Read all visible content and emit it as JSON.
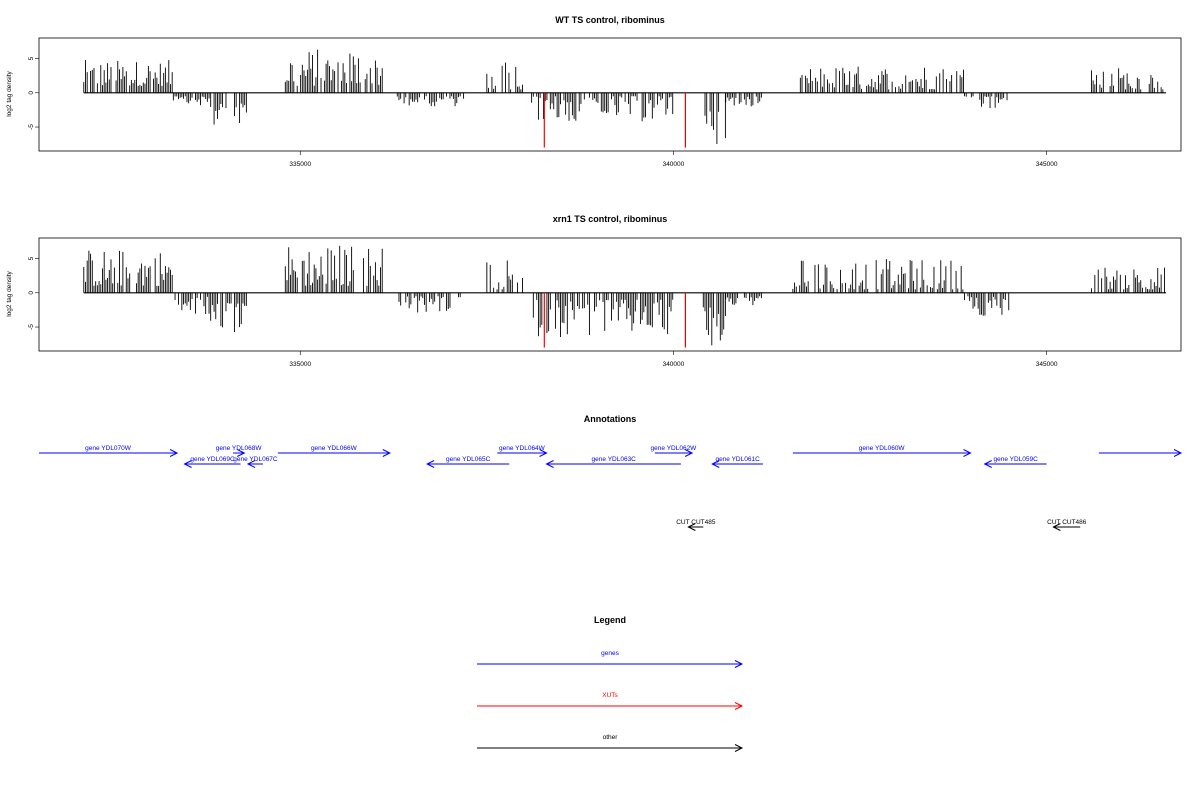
{
  "colors": {
    "genes": "#0000ff",
    "xuts": "#ff0000",
    "other": "#000000",
    "bars": "#000000"
  },
  "chart_data": [
    {
      "type": "bar",
      "title": "WT TS control, ribominus",
      "ylabel": "log2 tag density",
      "xlim": [
        331500,
        346800
      ],
      "ylim": [
        -8.5,
        8
      ],
      "xticks": [
        335000,
        340000,
        345000
      ],
      "xtick_labels": [
        "335000",
        "340000",
        "345000"
      ],
      "yticks": [
        5,
        0,
        -5
      ],
      "ytick_labels": [
        "5",
        "0",
        "-5"
      ],
      "regions": [
        {
          "start": 332100,
          "end": 333300,
          "sign": 1,
          "min": 1.0,
          "max": 4.8
        },
        {
          "start": 333300,
          "end": 333800,
          "sign": -1,
          "min": 0.5,
          "max": 2.0
        },
        {
          "start": 333800,
          "end": 334300,
          "sign": -1,
          "min": 1.5,
          "max": 4.8
        },
        {
          "start": 334800,
          "end": 336100,
          "sign": 1,
          "min": 1.0,
          "max": 6.5
        },
        {
          "start": 336300,
          "end": 337200,
          "sign": -1,
          "min": 0.5,
          "max": 2.0
        },
        {
          "start": 337500,
          "end": 338000,
          "sign": 1,
          "min": 0.5,
          "max": 5.0
        },
        {
          "start": 338100,
          "end": 340000,
          "sign": -1,
          "min": 0.5,
          "max": 4.3
        },
        {
          "start": 340400,
          "end": 340700,
          "sign": -1,
          "min": 2.0,
          "max": 7.5
        },
        {
          "start": 340700,
          "end": 341200,
          "sign": -1,
          "min": 0.5,
          "max": 2.0
        },
        {
          "start": 341700,
          "end": 343900,
          "sign": 1,
          "min": 0.5,
          "max": 4.0
        },
        {
          "start": 343900,
          "end": 344500,
          "sign": -1,
          "min": 0.5,
          "max": 2.5
        },
        {
          "start": 345600,
          "end": 346600,
          "sign": 1,
          "min": 0.5,
          "max": 3.8
        }
      ],
      "highlights": [
        {
          "x": 338270,
          "y": -8.0,
          "color": "#ff0000"
        },
        {
          "x": 340160,
          "y": -8.0,
          "color": "#ff0000"
        }
      ]
    },
    {
      "type": "bar",
      "title": "xrn1 TS control, ribominus",
      "ylabel": "log2 tag density",
      "xlim": [
        331500,
        346800
      ],
      "ylim": [
        -8.5,
        8
      ],
      "xticks": [
        335000,
        340000,
        345000
      ],
      "xtick_labels": [
        "335000",
        "340000",
        "345000"
      ],
      "yticks": [
        5,
        0,
        -5
      ],
      "ytick_labels": [
        "5",
        "0",
        "-5"
      ],
      "regions": [
        {
          "start": 332100,
          "end": 333300,
          "sign": 1,
          "min": 1.0,
          "max": 6.5
        },
        {
          "start": 333300,
          "end": 333800,
          "sign": -1,
          "min": 0.5,
          "max": 3.5
        },
        {
          "start": 333800,
          "end": 334300,
          "sign": -1,
          "min": 1.5,
          "max": 6.0
        },
        {
          "start": 334800,
          "end": 336100,
          "sign": 1,
          "min": 1.0,
          "max": 7.2
        },
        {
          "start": 336300,
          "end": 337200,
          "sign": -1,
          "min": 0.5,
          "max": 3.0
        },
        {
          "start": 337500,
          "end": 338000,
          "sign": 1,
          "min": 0.5,
          "max": 5.8
        },
        {
          "start": 338100,
          "end": 340000,
          "sign": -1,
          "min": 1.0,
          "max": 6.5
        },
        {
          "start": 340400,
          "end": 340700,
          "sign": -1,
          "min": 2.0,
          "max": 7.8
        },
        {
          "start": 340700,
          "end": 341200,
          "sign": -1,
          "min": 0.5,
          "max": 2.0
        },
        {
          "start": 341600,
          "end": 343900,
          "sign": 1,
          "min": 0.5,
          "max": 5.0
        },
        {
          "start": 343900,
          "end": 344500,
          "sign": -1,
          "min": 0.5,
          "max": 3.5
        },
        {
          "start": 345600,
          "end": 346600,
          "sign": 1,
          "min": 0.5,
          "max": 4.0
        }
      ],
      "highlights": [
        {
          "x": 338270,
          "y": -8.0,
          "color": "#ff0000"
        },
        {
          "x": 340160,
          "y": -8.0,
          "color": "#ff0000"
        }
      ]
    }
  ],
  "annotations": {
    "title": "Annotations",
    "features": [
      {
        "label": "gene YDL070W",
        "start": 331500,
        "end": 333350,
        "strand": "+",
        "row": 0,
        "kind": "gene"
      },
      {
        "label": "gene YDL068W",
        "start": 334100,
        "end": 334250,
        "strand": "+",
        "row": 0,
        "kind": "gene"
      },
      {
        "label": "gene YDL069C",
        "start": 333450,
        "end": 334200,
        "strand": "-",
        "row": 1,
        "kind": "gene"
      },
      {
        "label": "gene YDL067C",
        "start": 334300,
        "end": 334500,
        "strand": "-",
        "row": 1,
        "kind": "gene"
      },
      {
        "label": "gene YDL066W",
        "start": 334700,
        "end": 336200,
        "strand": "+",
        "row": 0,
        "kind": "gene"
      },
      {
        "label": "gene YDL065C",
        "start": 336700,
        "end": 337800,
        "strand": "-",
        "row": 1,
        "kind": "gene"
      },
      {
        "label": "gene YDL064W",
        "start": 337640,
        "end": 338300,
        "strand": "+",
        "row": 0,
        "kind": "gene"
      },
      {
        "label": "gene YDL063C",
        "start": 338300,
        "end": 340100,
        "strand": "-",
        "row": 1,
        "kind": "gene"
      },
      {
        "label": "gene YDL062W",
        "start": 339750,
        "end": 340250,
        "strand": "+",
        "row": 0,
        "kind": "gene"
      },
      {
        "label": "gene YDL061C",
        "start": 340520,
        "end": 341200,
        "strand": "-",
        "row": 1,
        "kind": "gene"
      },
      {
        "label": "gene YDL060W",
        "start": 341600,
        "end": 343980,
        "strand": "+",
        "row": 0,
        "kind": "gene"
      },
      {
        "label": "gene YDL059C",
        "start": 344170,
        "end": 345000,
        "strand": "-",
        "row": 1,
        "kind": "gene"
      },
      {
        "label": "",
        "start": 345700,
        "end": 346800,
        "strand": "+",
        "row": 0,
        "kind": "gene"
      },
      {
        "label": "CUT CUT485",
        "start": 340200,
        "end": 340400,
        "strand": "-",
        "row": 3,
        "kind": "other"
      },
      {
        "label": "CUT CUT486",
        "start": 345090,
        "end": 345450,
        "strand": "-",
        "row": 3,
        "kind": "other"
      }
    ]
  },
  "legend": {
    "title": "Legend",
    "items": [
      {
        "label": "genes",
        "color": "#0000ff"
      },
      {
        "label": "XUTs",
        "color": "#ff0000"
      },
      {
        "label": "other",
        "color": "#000000"
      }
    ]
  }
}
